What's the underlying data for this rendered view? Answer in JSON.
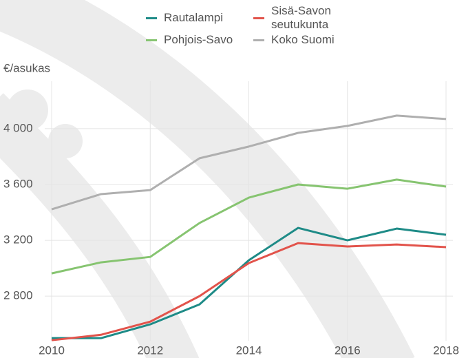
{
  "chart_data": {
    "type": "line",
    "y_axis_label": "€/asukas",
    "x": [
      2010,
      2011,
      2012,
      2013,
      2014,
      2015,
      2016,
      2017,
      2018
    ],
    "series": [
      {
        "name": "Rautalampi",
        "color": "#1e8b87",
        "values": [
          2499,
          2499,
          2598,
          2741,
          3057,
          3289,
          3200,
          3284,
          3240
        ]
      },
      {
        "name": "Pohjois-Savo",
        "color": "#86c470",
        "values": [
          2963,
          3042,
          3081,
          3324,
          3506,
          3600,
          3570,
          3635,
          3585
        ]
      },
      {
        "name": "Sisä-Savon seutukunta",
        "color": "#e2534b",
        "values": [
          2484,
          2523,
          2617,
          2800,
          3037,
          3180,
          3156,
          3170,
          3151
        ]
      },
      {
        "name": "Koko Suomi",
        "color": "#afafaf",
        "values": [
          3422,
          3531,
          3560,
          3788,
          3872,
          3970,
          4020,
          4094,
          4069
        ]
      }
    ],
    "xlim": [
      2010,
      2018
    ],
    "xticks": [
      2010,
      2012,
      2014,
      2016,
      2018
    ],
    "ylim": [
      2480,
      4340
    ],
    "yticks": [
      {
        "value": 2800,
        "label": "2 800"
      },
      {
        "value": 3200,
        "label": "3 200"
      },
      {
        "value": 3600,
        "label": "3 600"
      },
      {
        "value": 4000,
        "label": "4 000"
      }
    ],
    "grid": true
  }
}
